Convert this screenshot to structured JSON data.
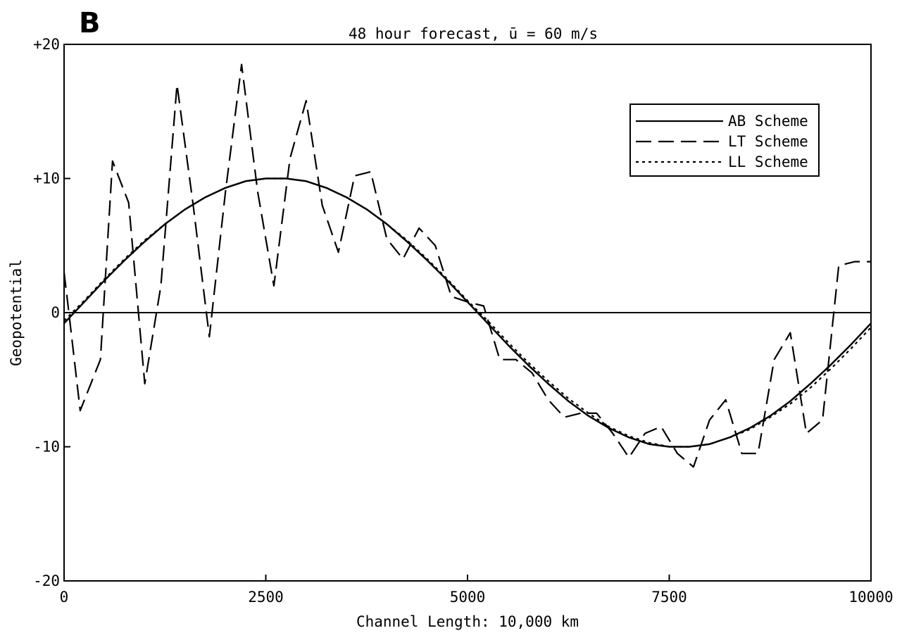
{
  "panel_label": "B",
  "chart_data": {
    "type": "line",
    "title": "48 hour forecast,  ū = 60 m/s",
    "xlabel": "Channel Length: 10,000 km",
    "ylabel": "Geopotential",
    "xlim": [
      0,
      10000
    ],
    "ylim": [
      -20,
      20
    ],
    "x_ticks": [
      0,
      2500,
      5000,
      7500,
      10000
    ],
    "x_tick_labels": [
      "0",
      "2500",
      "5000",
      "7500",
      "10000"
    ],
    "y_ticks": [
      -20,
      -10,
      0,
      10,
      20
    ],
    "y_tick_labels": [
      "-20",
      "-10",
      "0",
      "+10",
      "+20"
    ],
    "grid": false,
    "zero_line": true,
    "legend_position": "top-right",
    "series": [
      {
        "name": "AB Scheme",
        "style": "solid",
        "x": [
          0,
          250,
          500,
          750,
          1000,
          1250,
          1500,
          1750,
          2000,
          2250,
          2500,
          2750,
          3000,
          3250,
          3500,
          3750,
          4000,
          4250,
          4500,
          4750,
          5000,
          5250,
          5500,
          5750,
          6000,
          6250,
          6500,
          6750,
          7000,
          7250,
          7500,
          7750,
          8000,
          8250,
          8500,
          8750,
          9000,
          9250,
          9500,
          9750,
          10000
        ],
        "y": [
          -0.8,
          0.8,
          2.4,
          3.9,
          5.3,
          6.6,
          7.7,
          8.6,
          9.3,
          9.8,
          10.0,
          10.0,
          9.8,
          9.3,
          8.6,
          7.7,
          6.6,
          5.3,
          3.9,
          2.4,
          0.8,
          -0.8,
          -2.4,
          -3.9,
          -5.3,
          -6.6,
          -7.7,
          -8.6,
          -9.3,
          -9.8,
          -10.0,
          -10.0,
          -9.8,
          -9.3,
          -8.6,
          -7.7,
          -6.6,
          -5.3,
          -3.9,
          -2.4,
          -0.8
        ]
      },
      {
        "name": "LT Scheme",
        "style": "dashed",
        "x": [
          0,
          50,
          200,
          450,
          600,
          800,
          1000,
          1200,
          1400,
          1600,
          1800,
          2000,
          2200,
          2400,
          2600,
          2800,
          3000,
          3200,
          3400,
          3600,
          3800,
          4000,
          4200,
          4400,
          4600,
          4800,
          5000,
          5200,
          5400,
          5600,
          5800,
          6000,
          6200,
          6400,
          6600,
          6800,
          7000,
          7200,
          7400,
          7600,
          7800,
          8000,
          8200,
          8400,
          8600,
          8800,
          9000,
          9200,
          9400,
          9600,
          9800,
          10000
        ],
        "y": [
          3.0,
          0.5,
          -7.3,
          -3.5,
          11.3,
          8.2,
          -5.3,
          2.0,
          17.0,
          8.0,
          -1.8,
          9.0,
          18.5,
          9.0,
          2.0,
          11.5,
          15.8,
          8.0,
          4.5,
          10.2,
          10.5,
          5.5,
          4.0,
          6.3,
          5.0,
          1.2,
          0.8,
          0.5,
          -3.5,
          -3.5,
          -4.5,
          -6.5,
          -7.8,
          -7.5,
          -7.5,
          -9.0,
          -10.8,
          -9.0,
          -8.5,
          -10.5,
          -11.5,
          -8.0,
          -6.5,
          -10.5,
          -10.5,
          -3.5,
          -1.5,
          -9.0,
          -8.0,
          3.5,
          3.8,
          3.8
        ]
      },
      {
        "name": "LL Scheme",
        "style": "dotted",
        "x": [
          0,
          250,
          500,
          750,
          1000,
          1250,
          1500,
          1750,
          2000,
          2250,
          2500,
          2750,
          3000,
          3250,
          3500,
          3750,
          4000,
          4250,
          4500,
          4750,
          5000,
          5250,
          5500,
          5750,
          6000,
          6250,
          6500,
          6750,
          7000,
          7250,
          7500,
          7750,
          8000,
          8250,
          8500,
          8750,
          9000,
          9250,
          9500,
          9750,
          10000
        ],
        "y": [
          -0.6,
          0.9,
          2.5,
          4.0,
          5.4,
          6.6,
          7.7,
          8.6,
          9.3,
          9.8,
          10.0,
          10.0,
          9.8,
          9.3,
          8.6,
          7.7,
          6.6,
          5.4,
          4.0,
          2.5,
          0.9,
          -0.6,
          -2.2,
          -3.7,
          -5.1,
          -6.4,
          -7.5,
          -8.5,
          -9.2,
          -9.7,
          -10.0,
          -10.0,
          -9.8,
          -9.3,
          -8.7,
          -7.8,
          -6.8,
          -5.6,
          -4.2,
          -2.7,
          -1.1
        ]
      }
    ]
  }
}
